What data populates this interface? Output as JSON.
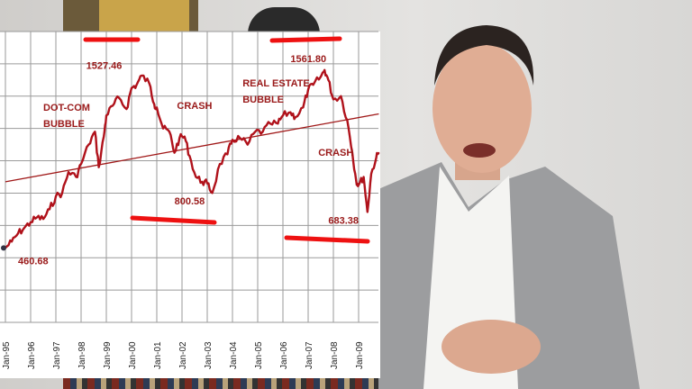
{
  "chart_data": {
    "type": "line",
    "title": "",
    "xlabel": "",
    "ylabel": "",
    "x_tick_labels": [
      "Jan-95",
      "Jan-96",
      "Jan-97",
      "Jan-98",
      "Jan-99",
      "Jan-00",
      "Jan-01",
      "Jan-02",
      "Jan-03",
      "Jan-04",
      "Jan-05",
      "Jan-06",
      "Jan-07",
      "Jan-08",
      "Jan-09"
    ],
    "xlim": [
      1995,
      2009.8
    ],
    "ylim": [
      0,
      1800
    ],
    "grid": true,
    "series": [
      {
        "color": "#b0121b",
        "x": [
          1995.0,
          1995.25,
          1995.5,
          1995.75,
          1996.0,
          1996.25,
          1996.5,
          1996.75,
          1997.0,
          1997.25,
          1997.5,
          1997.8,
          1998.0,
          1998.3,
          1998.55,
          1998.7,
          1998.9,
          1999.0,
          1999.25,
          1999.5,
          1999.8,
          2000.0,
          2000.2,
          2000.4,
          2000.7,
          2000.9,
          2001.0,
          2001.25,
          2001.5,
          2001.7,
          2001.9,
          2002.1,
          2002.3,
          2002.55,
          2002.8,
          2003.0,
          2003.2,
          2003.5,
          2003.8,
          2004.0,
          2004.3,
          2004.6,
          2004.9,
          2005.2,
          2005.5,
          2005.8,
          2006.0,
          2006.3,
          2006.5,
          2006.8,
          2007.0,
          2007.2,
          2007.5,
          2007.65,
          2007.8,
          2008.0,
          2008.3,
          2008.55,
          2008.75,
          2008.9,
          2009.0,
          2009.2,
          2009.35,
          2009.5,
          2009.7,
          2009.8
        ],
        "values": [
          460.68,
          500,
          550,
          585,
          620,
          650,
          640,
          700,
          780,
          800,
          930,
          900,
          980,
          1100,
          1180,
          960,
          1150,
          1280,
          1340,
          1390,
          1320,
          1450,
          1470,
          1527.46,
          1480,
          1350,
          1330,
          1200,
          1180,
          1050,
          1140,
          1150,
          1030,
          900,
          870,
          860,
          800.58,
          980,
          1040,
          1130,
          1140,
          1100,
          1180,
          1180,
          1230,
          1230,
          1280,
          1300,
          1270,
          1330,
          1440,
          1470,
          1520,
          1561.8,
          1500,
          1380,
          1400,
          1250,
          1050,
          880,
          850,
          900,
          683.38,
          920,
          1020,
          1050
        ]
      }
    ],
    "trendline": {
      "x": [
        1995.0,
        2009.8
      ],
      "values": [
        870,
        1290
      ]
    },
    "annotations": [
      {
        "text": "1527.46",
        "x": 1998.2,
        "y": 1570
      },
      {
        "text": "DOT-COM",
        "x": 1996.5,
        "y": 1310
      },
      {
        "text": "BUBBLE",
        "x": 1996.5,
        "y": 1210
      },
      {
        "text": "CRASH",
        "x": 2001.8,
        "y": 1320
      },
      {
        "text": "800.58",
        "x": 2001.7,
        "y": 730
      },
      {
        "text": "REAL ESTATE",
        "x": 2004.4,
        "y": 1460
      },
      {
        "text": "BUBBLE",
        "x": 2004.4,
        "y": 1360
      },
      {
        "text": "1561.80",
        "x": 2006.3,
        "y": 1610
      },
      {
        "text": "CRASH",
        "x": 2007.4,
        "y": 1030
      },
      {
        "text": "683.38",
        "x": 2007.8,
        "y": 610
      },
      {
        "text": "460.68",
        "x": 1995.5,
        "y": 360
      }
    ]
  },
  "colors": {
    "line": "#b0121b",
    "annotation": "#9a1a1a",
    "marker": "#ee1111"
  }
}
